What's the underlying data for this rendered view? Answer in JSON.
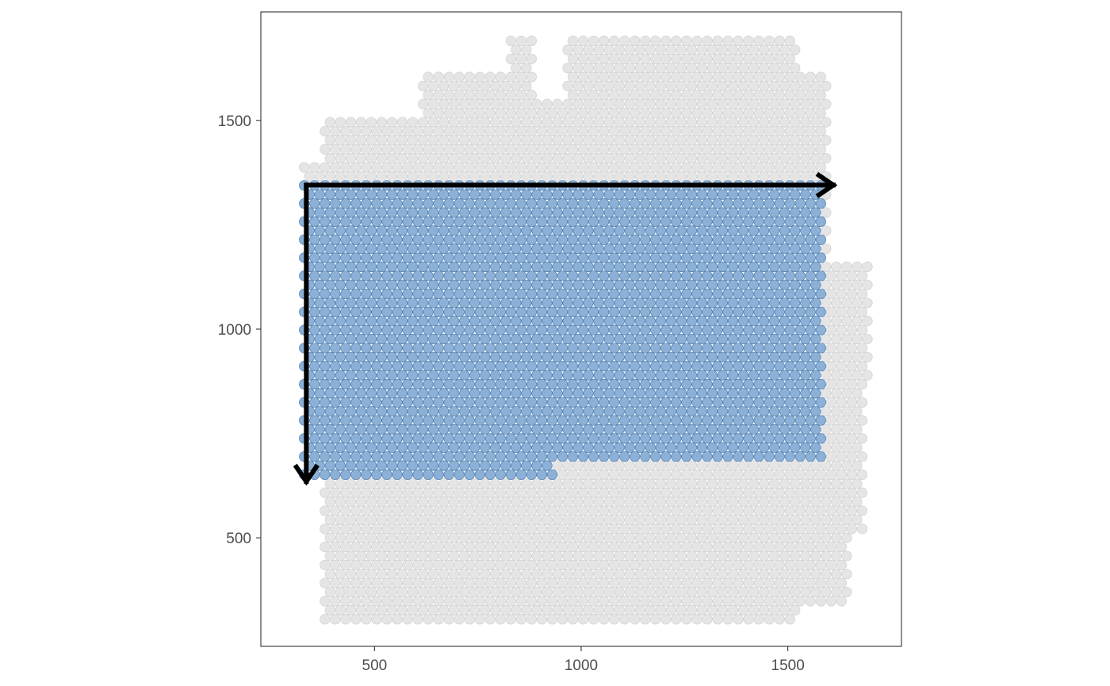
{
  "chart_data": {
    "type": "scatter",
    "title": "",
    "xlabel": "",
    "ylabel": "",
    "xlim": [
      225,
      1775
    ],
    "ylim": [
      240,
      1760
    ],
    "x_ticks": [
      500,
      1000,
      1500
    ],
    "y_ticks": [
      500,
      1000,
      1500
    ],
    "x_tick_labels": [
      "500",
      "1000",
      "1500"
    ],
    "y_tick_labels": [
      "500",
      "1000",
      "1500"
    ],
    "grid": false,
    "legend": "none",
    "spot_spacing": 25,
    "series": [
      {
        "role": "background",
        "color": "#e0e0e0",
        "region": "tissue spots",
        "x_extent": [
          330,
          1710
        ],
        "y_extent": [
          305,
          1690
        ]
      },
      {
        "role": "highlighted",
        "color": "#5b8fc4",
        "region": "selected rectangle",
        "x_range": [
          330,
          1590
        ],
        "y_range": [
          650,
          1345
        ],
        "bottom_row_right_limit": 940
      }
    ],
    "annotations": [
      {
        "type": "arrow",
        "from": [
          335,
          1345
        ],
        "to": [
          1610,
          1345
        ],
        "color": "#000000"
      },
      {
        "type": "arrow",
        "from": [
          335,
          1345
        ],
        "to": [
          335,
          635
        ],
        "color": "#000000"
      }
    ]
  }
}
